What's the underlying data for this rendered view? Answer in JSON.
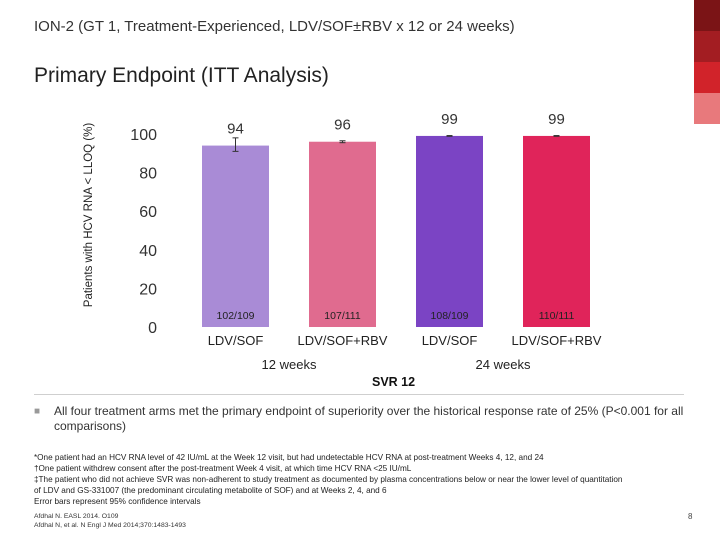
{
  "slide": {
    "title": "ION-2 (GT 1, Treatment-Experienced, LDV/SOF±RBV x 12 or 24 weeks)",
    "subtitle": "Primary Endpoint (ITT Analysis)",
    "page_number": "8"
  },
  "accent_colors": [
    "#7b1416",
    "#a31d22",
    "#d1232a",
    "#e8797c"
  ],
  "chart_data": {
    "type": "bar",
    "ylabel": "Patients with HCV RNA < LLOQ (%)",
    "ylim": [
      0,
      100
    ],
    "yticks": [
      0,
      20,
      40,
      60,
      80,
      100
    ],
    "grid": false,
    "categories": [
      "LDV/SOF",
      "LDV/SOF+RBV",
      "LDV/SOF",
      "LDV/SOF+RBV"
    ],
    "values": [
      94,
      96,
      99,
      99
    ],
    "value_labels": [
      "94",
      "96",
      "99",
      "99"
    ],
    "counts": [
      "102/109",
      "107/111",
      "108/109",
      "110/111"
    ],
    "error_bars": [
      [
        91,
        98
      ],
      [
        95.5,
        96.5
      ],
      [
        98.8,
        99.2
      ],
      [
        98.8,
        99.2
      ]
    ],
    "colors": [
      "#a98bd6",
      "#e06b8f",
      "#7b44c4",
      "#e0245a"
    ],
    "groups": [
      {
        "label": "12 weeks",
        "bars": [
          0,
          1
        ]
      },
      {
        "label": "24 weeks",
        "bars": [
          2,
          3
        ]
      }
    ],
    "xlabel": "SVR 12"
  },
  "bullet": {
    "text": "All four treatment arms met the primary endpoint of superiority over the historical response rate of 25% (P<0.001 for all comparisons)"
  },
  "footnotes": [
    "*One patient had an HCV RNA level of 42 IU/mL at the Week 12 visit, but had undetectable HCV RNA at post-treatment Weeks 4, 12, and 24",
    "†One patient withdrew consent after the post-treatment Week 4 visit, at which time HCV RNA <25 IU/mL",
    "‡The patient who did not achieve SVR was non-adherent to study treatment as documented by plasma concentrations below or near the lower level of quantitation",
    "of LDV and GS-331007 (the predominant circulating metabolite of SOF) and at Weeks 2, 4, and 6",
    "Error bars represent 95% confidence intervals"
  ],
  "references": [
    "Afdhal N. EASL 2014. O109",
    "Afdhal N, et al. N Engl J Med 2014;370:1483-1493"
  ]
}
